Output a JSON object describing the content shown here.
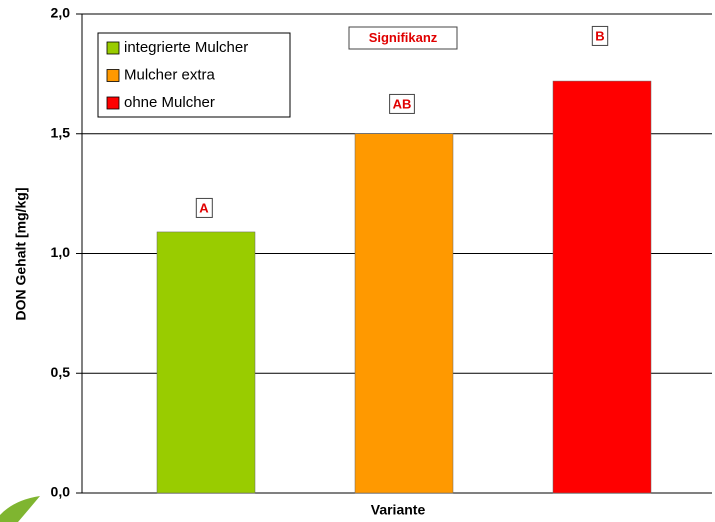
{
  "chart_data": {
    "type": "bar",
    "y_label": "DON Gehalt [mg/kg]",
    "x_label": "Variante",
    "annotation": "Signifikanz",
    "categories": [
      null
    ],
    "series": [
      {
        "name": "integrierte Mulcher",
        "color": "#99cc00",
        "values": [
          1.09
        ],
        "significance": "A"
      },
      {
        "name": "Mulcher extra",
        "color": "#ff9900",
        "values": [
          1.5
        ],
        "significance": "AB"
      },
      {
        "name": "ohne Mulcher",
        "color": "#ff0000",
        "values": [
          1.72
        ],
        "significance": "B"
      }
    ],
    "ylim": [
      0,
      2
    ],
    "yticks": [
      {
        "value": 0,
        "label": "0,0"
      },
      {
        "value": 0.5,
        "label": "0,5"
      },
      {
        "value": 1,
        "label": "1,0"
      },
      {
        "value": 1.5,
        "label": "1,5"
      },
      {
        "value": 2,
        "label": "2,0"
      }
    ],
    "grid": true,
    "legend": "top-left"
  }
}
